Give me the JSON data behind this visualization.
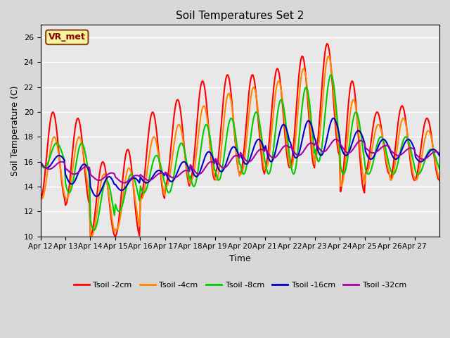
{
  "title": "Soil Temperatures Set 2",
  "xlabel": "Time",
  "ylabel": "Soil Temperature (C)",
  "ylim": [
    10,
    27
  ],
  "background_color": "#e8e8e8",
  "plot_bg_color": "#e8e8e8",
  "annotation_text": "VR_met",
  "annotation_color": "#8B0000",
  "annotation_bg": "#f5f5a0",
  "annotation_border": "#8B4513",
  "series": {
    "Tsoil -2cm": {
      "color": "#ff0000",
      "lw": 1.5
    },
    "Tsoil -4cm": {
      "color": "#ff8800",
      "lw": 1.5
    },
    "Tsoil -8cm": {
      "color": "#00cc00",
      "lw": 1.5
    },
    "Tsoil -16cm": {
      "color": "#0000cc",
      "lw": 1.5
    },
    "Tsoil -32cm": {
      "color": "#aa00aa",
      "lw": 1.5
    }
  },
  "xtick_labels": [
    "Apr 12",
    "Apr 13",
    "Apr 14",
    "Apr 15",
    "Apr 16",
    "Apr 17",
    "Apr 18",
    "Apr 19",
    "Apr 20",
    "Apr 21",
    "Apr 22",
    "Apr 23",
    "Apr 24",
    "Apr 25",
    "Apr 26",
    "Apr 27"
  ],
  "ytick_labels": [
    "10",
    "12",
    "14",
    "16",
    "18",
    "20",
    "22",
    "24",
    "26"
  ],
  "ytick_vals": [
    10,
    12,
    14,
    16,
    18,
    20,
    22,
    24,
    26
  ],
  "day_amps_2cm": [
    3.5,
    3.5,
    3.0,
    3.5,
    3.5,
    3.5,
    4.0,
    4.0,
    4.0,
    4.0,
    4.5,
    4.5,
    4.5,
    2.5,
    3.0,
    2.5
  ],
  "day_amps_4cm": [
    2.5,
    2.5,
    2.5,
    2.5,
    2.5,
    2.5,
    3.0,
    3.5,
    3.5,
    3.5,
    4.0,
    4.0,
    3.5,
    2.0,
    2.5,
    2.0
  ],
  "day_amps_8cm": [
    1.0,
    2.0,
    2.0,
    1.5,
    1.5,
    2.0,
    2.5,
    2.5,
    2.5,
    3.0,
    3.5,
    3.5,
    2.5,
    1.5,
    1.5,
    1.0
  ],
  "day_amps_16cm": [
    0.5,
    0.8,
    0.8,
    0.5,
    0.5,
    0.8,
    1.0,
    1.0,
    1.0,
    1.5,
    1.5,
    1.5,
    1.0,
    0.8,
    0.8,
    0.5
  ],
  "day_amps_32cm": [
    0.3,
    0.3,
    0.3,
    0.3,
    0.3,
    0.3,
    0.5,
    0.5,
    0.5,
    0.5,
    0.5,
    0.5,
    0.5,
    0.3,
    0.3,
    0.3
  ],
  "day_base_2cm": [
    16.5,
    16.0,
    13.0,
    13.5,
    16.5,
    17.5,
    18.5,
    19.0,
    19.0,
    19.5,
    20.0,
    21.0,
    18.0,
    17.5,
    17.5,
    17.0
  ],
  "day_base_4cm": [
    15.5,
    15.5,
    12.5,
    13.0,
    15.5,
    16.5,
    17.5,
    18.0,
    18.5,
    19.0,
    19.5,
    20.5,
    17.5,
    17.0,
    17.0,
    16.5
  ],
  "day_base_8cm": [
    16.5,
    15.5,
    12.5,
    13.5,
    15.0,
    15.5,
    16.5,
    17.0,
    17.5,
    18.0,
    18.5,
    19.5,
    17.5,
    16.5,
    16.5,
    16.0
  ],
  "day_base_16cm": [
    16.0,
    15.0,
    14.0,
    14.2,
    14.8,
    15.2,
    15.8,
    16.2,
    16.8,
    17.5,
    17.8,
    18.0,
    17.5,
    17.0,
    17.0,
    16.5
  ],
  "day_base_32cm": [
    15.7,
    15.3,
    14.8,
    14.6,
    14.8,
    15.0,
    15.5,
    16.0,
    16.5,
    16.8,
    17.0,
    17.3,
    17.2,
    17.0,
    16.8,
    16.5
  ],
  "phase_2cm": 0.25,
  "phase_4cm": 0.3,
  "phase_8cm": 0.4,
  "phase_16cm": 0.5,
  "phase_32cm": 0.6
}
